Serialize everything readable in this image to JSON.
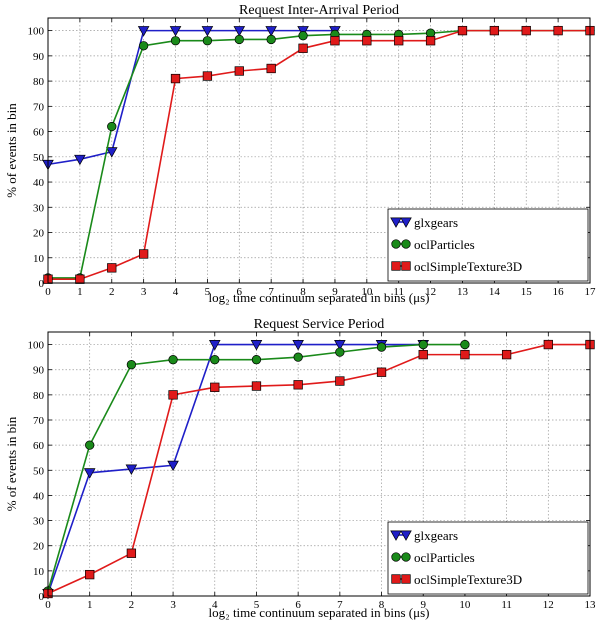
{
  "chart_data": [
    {
      "type": "line",
      "title": "Request Inter-Arrival Period",
      "xlabel": "log₂ time continuum separated in bins (μs)",
      "ylabel": "% of events in bin",
      "xlim": [
        0,
        17
      ],
      "ylim": [
        0,
        105
      ],
      "xticks": [
        0,
        1,
        2,
        3,
        4,
        5,
        6,
        7,
        8,
        9,
        10,
        11,
        12,
        13,
        14,
        15,
        16,
        17
      ],
      "yticks": [
        0,
        10,
        20,
        30,
        40,
        50,
        60,
        70,
        80,
        90,
        100
      ],
      "grid": true,
      "legend_position": "lower-right",
      "series": [
        {
          "name": "glxgears",
          "color": "#1f1fc8",
          "marker": "triangle-down",
          "x": [
            0,
            1,
            2,
            3,
            4,
            5,
            6,
            7,
            8,
            9
          ],
          "y": [
            47,
            49,
            52,
            100,
            100,
            100,
            100,
            100,
            100,
            100
          ]
        },
        {
          "name": "oclParticles",
          "color": "#1a8a1a",
          "marker": "circle",
          "x": [
            0,
            1,
            2,
            3,
            4,
            5,
            6,
            7,
            8,
            9,
            10,
            11,
            12,
            13,
            14,
            15,
            16,
            17
          ],
          "y": [
            2,
            2,
            62,
            94,
            96,
            96,
            96.5,
            96.5,
            98,
            98.5,
            98.5,
            98.5,
            99,
            100,
            100,
            100,
            100,
            100
          ]
        },
        {
          "name": "oclSimpleTexture3D",
          "color": "#e01a1a",
          "marker": "square",
          "x": [
            0,
            1,
            2,
            3,
            4,
            5,
            6,
            7,
            8,
            9,
            10,
            11,
            12,
            13,
            14,
            15,
            16,
            17
          ],
          "y": [
            1.5,
            1.5,
            6,
            11.5,
            81,
            82,
            84,
            85,
            93,
            96,
            96,
            96,
            96,
            100,
            100,
            100,
            100,
            100
          ]
        }
      ]
    },
    {
      "type": "line",
      "title": "Request Service Period",
      "xlabel": "log₂ time continuum separated in bins (μs)",
      "ylabel": "% of events in bin",
      "xlim": [
        0,
        13
      ],
      "ylim": [
        0,
        105
      ],
      "xticks": [
        0,
        1,
        2,
        3,
        4,
        5,
        6,
        7,
        8,
        9,
        10,
        11,
        12,
        13
      ],
      "yticks": [
        0,
        10,
        20,
        30,
        40,
        50,
        60,
        70,
        80,
        90,
        100
      ],
      "grid": true,
      "legend_position": "lower-right",
      "series": [
        {
          "name": "glxgears",
          "color": "#1f1fc8",
          "marker": "triangle-down",
          "x": [
            0,
            1,
            2,
            3,
            4,
            5,
            6,
            7,
            8,
            9
          ],
          "y": [
            1,
            49,
            50.5,
            52,
            100,
            100,
            100,
            100,
            100,
            100
          ]
        },
        {
          "name": "oclParticles",
          "color": "#1a8a1a",
          "marker": "circle",
          "x": [
            0,
            1,
            2,
            3,
            4,
            5,
            6,
            7,
            8,
            9,
            10
          ],
          "y": [
            2,
            60,
            92,
            94,
            94,
            94,
            95,
            97,
            99,
            100,
            100
          ]
        },
        {
          "name": "oclSimpleTexture3D",
          "color": "#e01a1a",
          "marker": "square",
          "x": [
            0,
            1,
            2,
            3,
            4,
            5,
            6,
            7,
            8,
            9,
            10,
            11,
            12,
            13
          ],
          "y": [
            1,
            8.5,
            17,
            80,
            83,
            83.5,
            84,
            85.5,
            89,
            96,
            96,
            96,
            100,
            100
          ]
        }
      ]
    }
  ]
}
